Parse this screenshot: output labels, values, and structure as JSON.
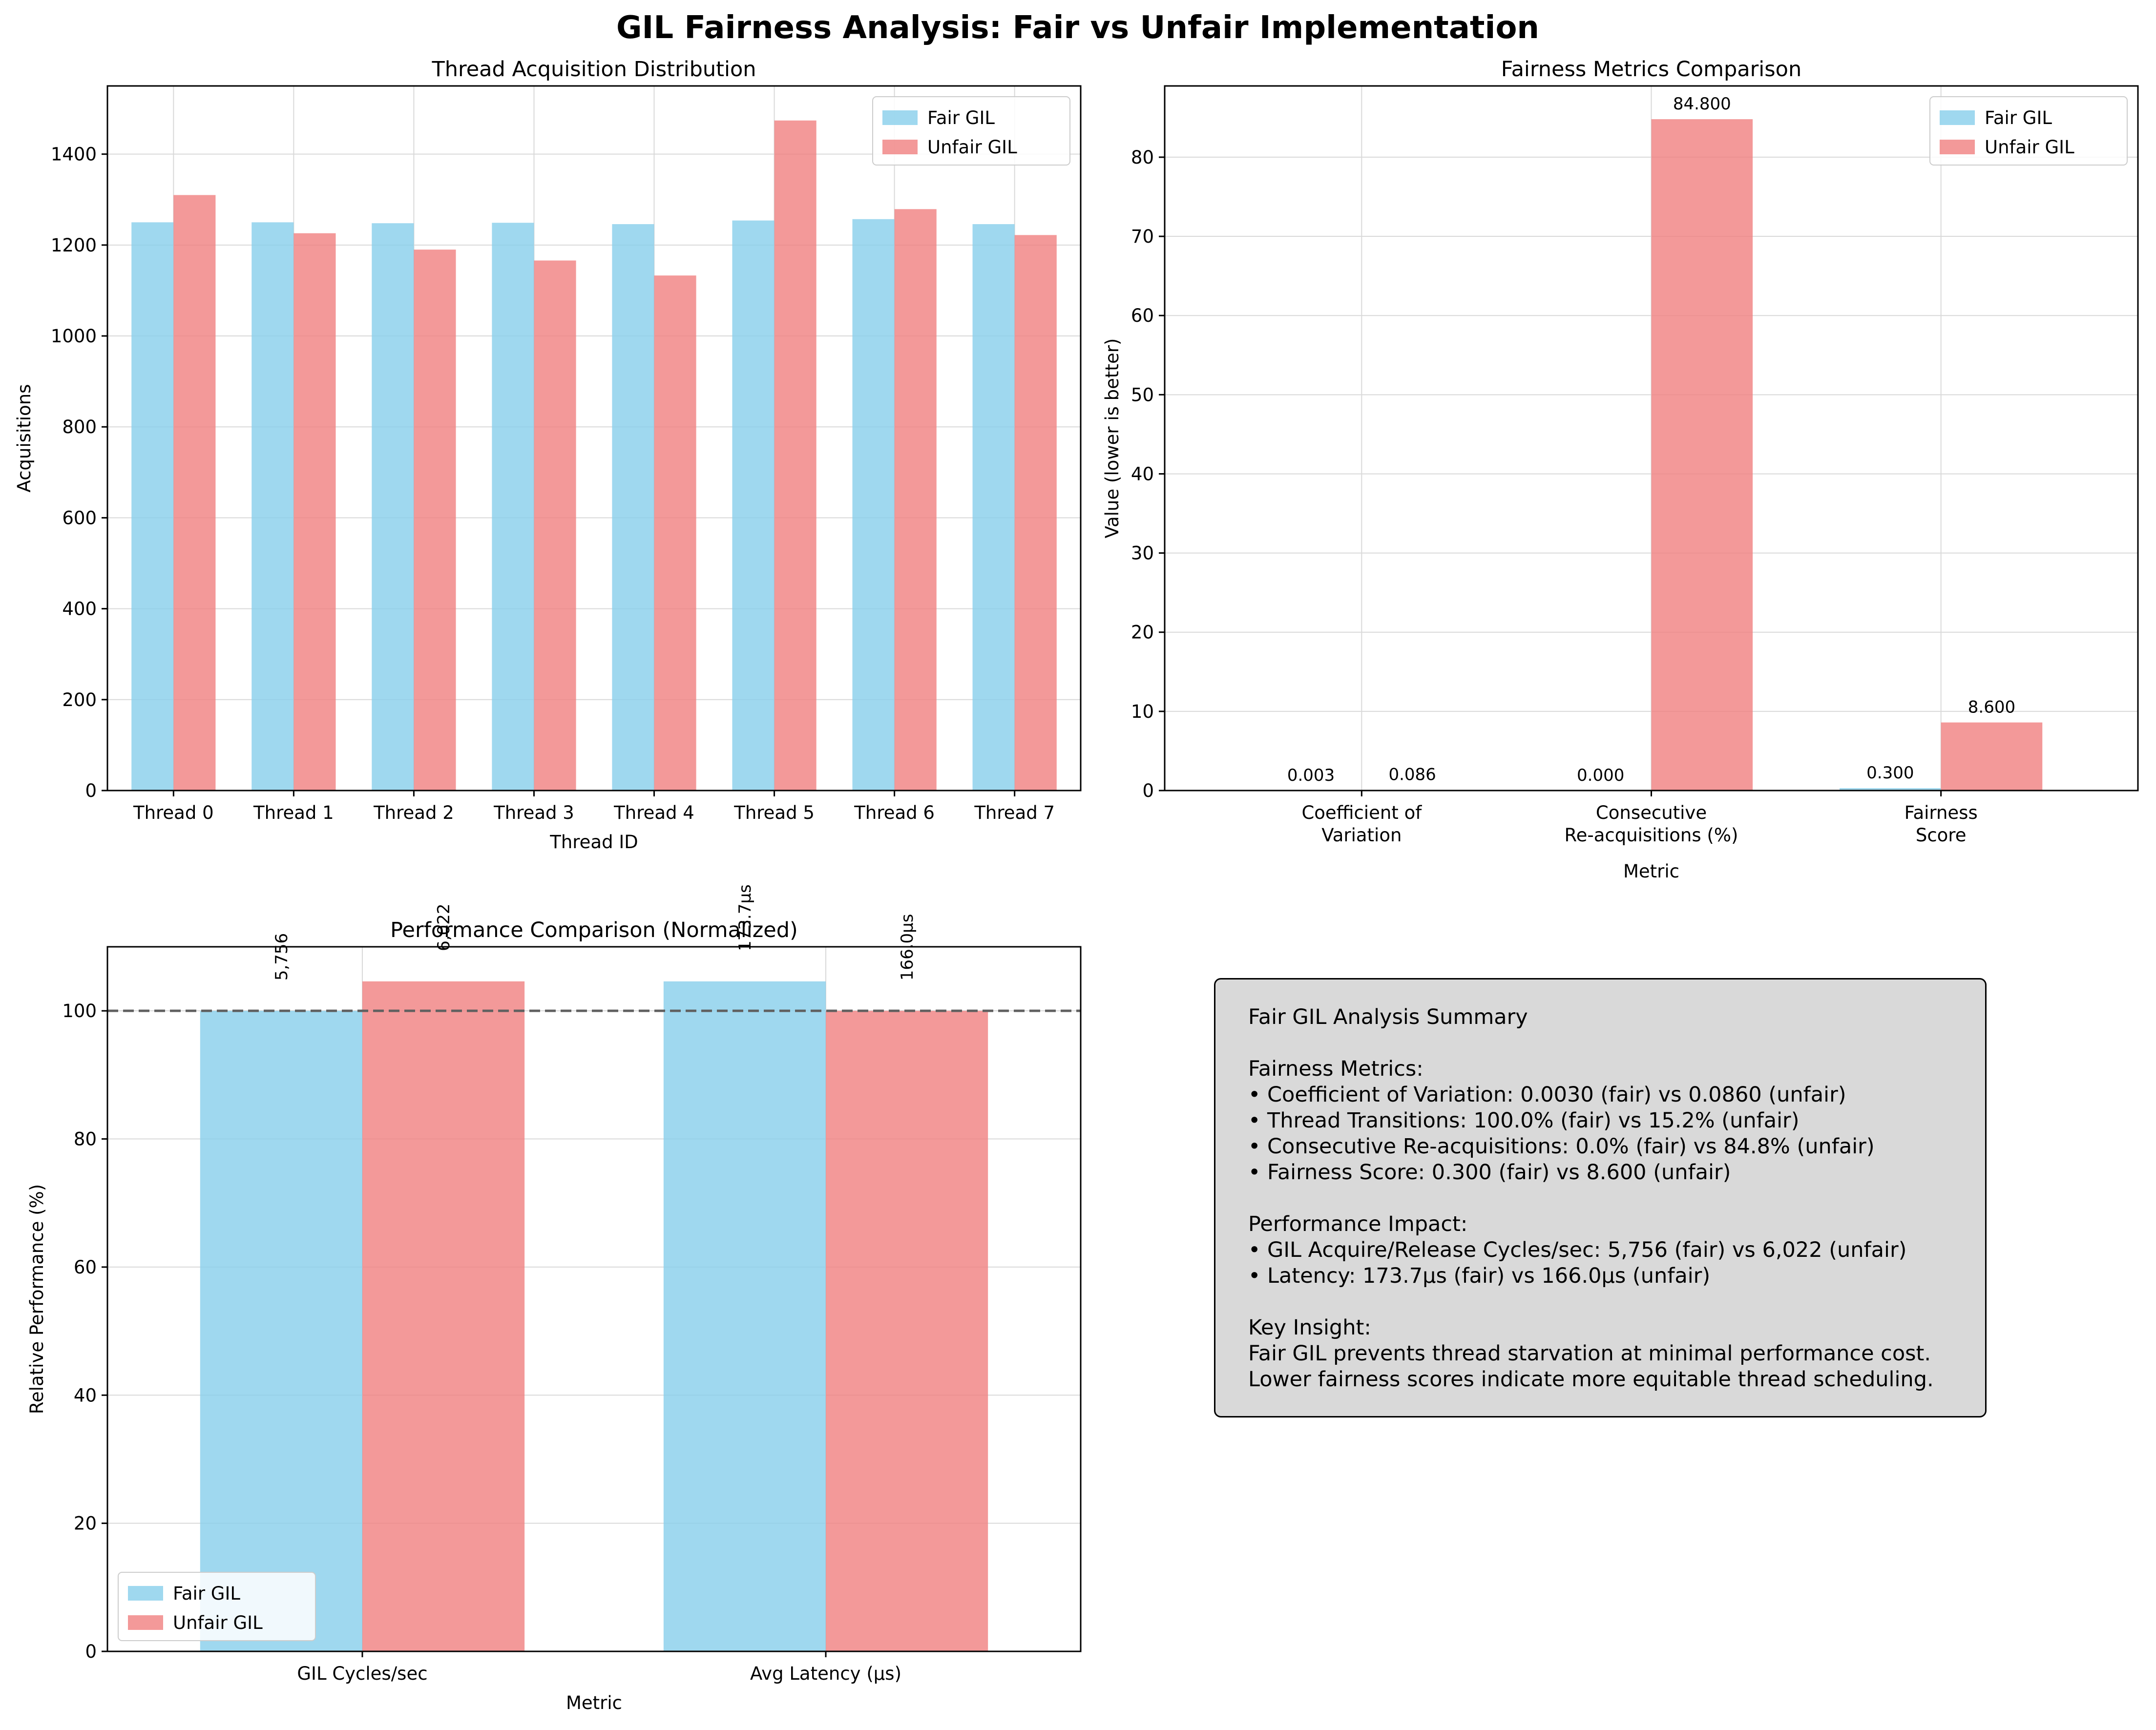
{
  "figure": {
    "suptitle": "GIL Fairness Analysis: Fair vs Unfair Implementation",
    "colors": {
      "fair": "#87ceeb",
      "unfair": "#f08080",
      "grid": "#d9d9d9",
      "box": "#d9d9d9",
      "refline": "#606060"
    }
  },
  "chart_data": [
    {
      "type": "bar",
      "title": "Thread Acquisition Distribution",
      "xlabel": "Thread ID",
      "ylabel": "Acquisitions",
      "categories": [
        "Thread 0",
        "Thread 1",
        "Thread 2",
        "Thread 3",
        "Thread 4",
        "Thread 5",
        "Thread 6",
        "Thread 7"
      ],
      "series": [
        {
          "name": "Fair GIL",
          "values": [
            1250,
            1250,
            1248,
            1249,
            1246,
            1254,
            1257,
            1246
          ]
        },
        {
          "name": "Unfair GIL",
          "values": [
            1310,
            1226,
            1190,
            1166,
            1133,
            1474,
            1279,
            1222
          ]
        }
      ],
      "ylim": [
        0,
        1550
      ],
      "yticks": [
        0,
        200,
        400,
        600,
        800,
        1000,
        1200,
        1400
      ],
      "legend": "top-right",
      "grid": true
    },
    {
      "type": "bar",
      "title": "Fairness Metrics Comparison",
      "xlabel": "Metric",
      "ylabel": "Value (lower is better)",
      "categories": [
        "Coefficient of\nVariation",
        "Consecutive\nRe-acquisitions (%)",
        "Fairness\nScore"
      ],
      "series": [
        {
          "name": "Fair GIL",
          "values": [
            0.003,
            0.0,
            0.3
          ],
          "labels": [
            "0.003",
            "0.000",
            "0.300"
          ]
        },
        {
          "name": "Unfair GIL",
          "values": [
            0.086,
            84.8,
            8.6
          ],
          "labels": [
            "0.086",
            "84.800",
            "8.600"
          ]
        }
      ],
      "ylim": [
        0,
        89
      ],
      "yticks": [
        0,
        10,
        20,
        30,
        40,
        50,
        60,
        70,
        80
      ],
      "legend": "top-right",
      "grid": true
    },
    {
      "type": "bar",
      "title": "Performance Comparison (Normalized)",
      "xlabel": "Metric",
      "ylabel": "Relative Performance (%)",
      "categories": [
        "GIL Cycles/sec",
        "Avg Latency (µs)"
      ],
      "series": [
        {
          "name": "Fair GIL",
          "values": [
            100.0,
            104.6
          ],
          "labels": [
            "5,756",
            "173.7µs"
          ]
        },
        {
          "name": "Unfair GIL",
          "values": [
            104.6,
            100.0
          ],
          "labels": [
            "6,022",
            "166.0µs"
          ]
        }
      ],
      "reference_line": 100,
      "ylim": [
        0,
        110
      ],
      "yticks": [
        0,
        20,
        40,
        60,
        80,
        100
      ],
      "legend": "lower-left",
      "grid": true
    }
  ],
  "summary": {
    "lines": [
      "Fair GIL Analysis Summary",
      "",
      "Fairness Metrics:",
      "• Coefficient of Variation: 0.0030 (fair) vs 0.0860 (unfair)",
      "• Thread Transitions: 100.0% (fair) vs 15.2% (unfair)",
      "• Consecutive Re-acquisitions: 0.0% (fair) vs 84.8% (unfair)",
      "• Fairness Score: 0.300 (fair) vs 8.600 (unfair)",
      "",
      "Performance Impact:",
      "• GIL Acquire/Release Cycles/sec: 5,756 (fair) vs 6,022 (unfair)",
      "• Latency: 173.7µs (fair) vs 166.0µs (unfair)",
      "",
      "Key Insight:",
      "Fair GIL prevents thread starvation at minimal performance cost.",
      "Lower fairness scores indicate more equitable thread scheduling."
    ]
  }
}
